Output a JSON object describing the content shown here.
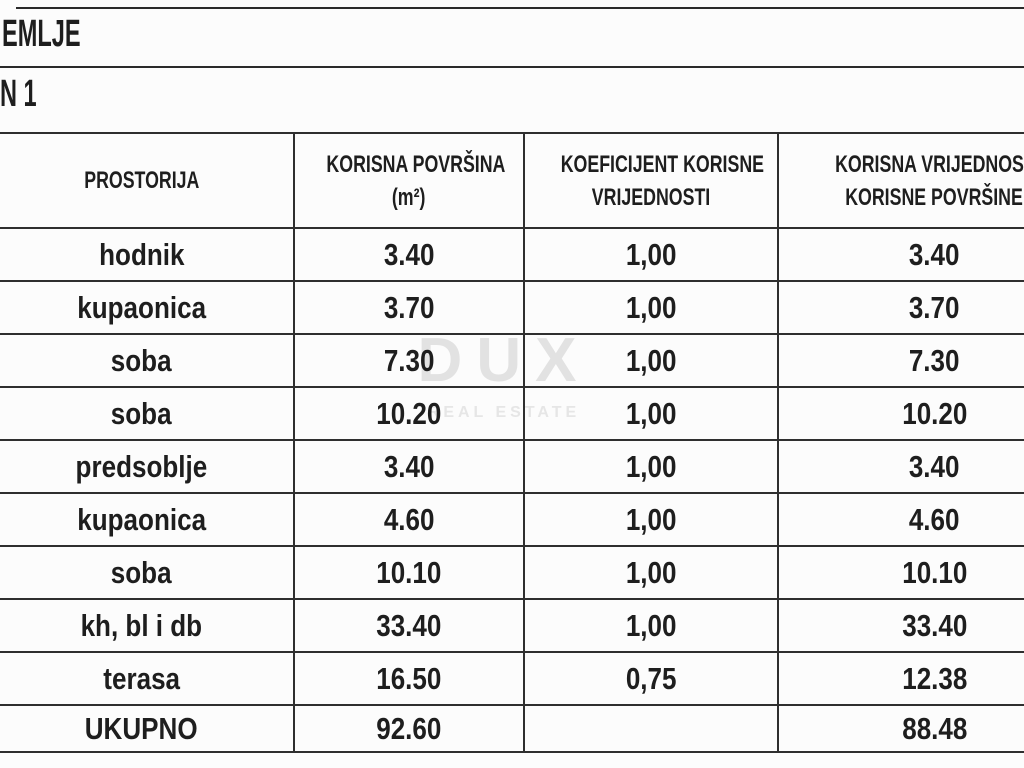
{
  "page": {
    "floor_title": "EMLJE",
    "unit_title": "N 1"
  },
  "watermark": {
    "brand": "DUX",
    "tagline": "REAL ESTATE"
  },
  "table": {
    "headers": {
      "room": "PROSTORIJA",
      "area_line1": "KORISNA POVRŠINA",
      "area_line2": "(m²)",
      "coef_line1": "KOEFICIJENT KORISNE",
      "coef_line2": "VRIJEDNOSTI",
      "value_line1": "KORISNA VRIJEDNOST",
      "value_line2": "KORISNE POVRŠINE"
    },
    "rows": [
      {
        "room": "hodnik",
        "area": "3.40",
        "coef": "1,00",
        "value": "3.40"
      },
      {
        "room": "kupaonica",
        "area": "3.70",
        "coef": "1,00",
        "value": "3.70"
      },
      {
        "room": "soba",
        "area": "7.30",
        "coef": "1,00",
        "value": "7.30"
      },
      {
        "room": "soba",
        "area": "10.20",
        "coef": "1,00",
        "value": "10.20"
      },
      {
        "room": "predsoblje",
        "area": "3.40",
        "coef": "1,00",
        "value": "3.40"
      },
      {
        "room": "kupaonica",
        "area": "4.60",
        "coef": "1,00",
        "value": "4.60"
      },
      {
        "room": "soba",
        "area": "10.10",
        "coef": "1,00",
        "value": "10.10"
      },
      {
        "room": "kh, bl i db",
        "area": "33.40",
        "coef": "1,00",
        "value": "33.40"
      },
      {
        "room": "terasa",
        "area": "16.50",
        "coef": "0,75",
        "value": "12.38"
      }
    ],
    "total": {
      "label": "UKUPNO",
      "area": "92.60",
      "coef": "",
      "value": "88.48"
    }
  },
  "colors": {
    "text": "#1e1e1e",
    "border": "#2f2f2f",
    "watermark": "#e2e2e2",
    "background": "#fcfcfc"
  }
}
